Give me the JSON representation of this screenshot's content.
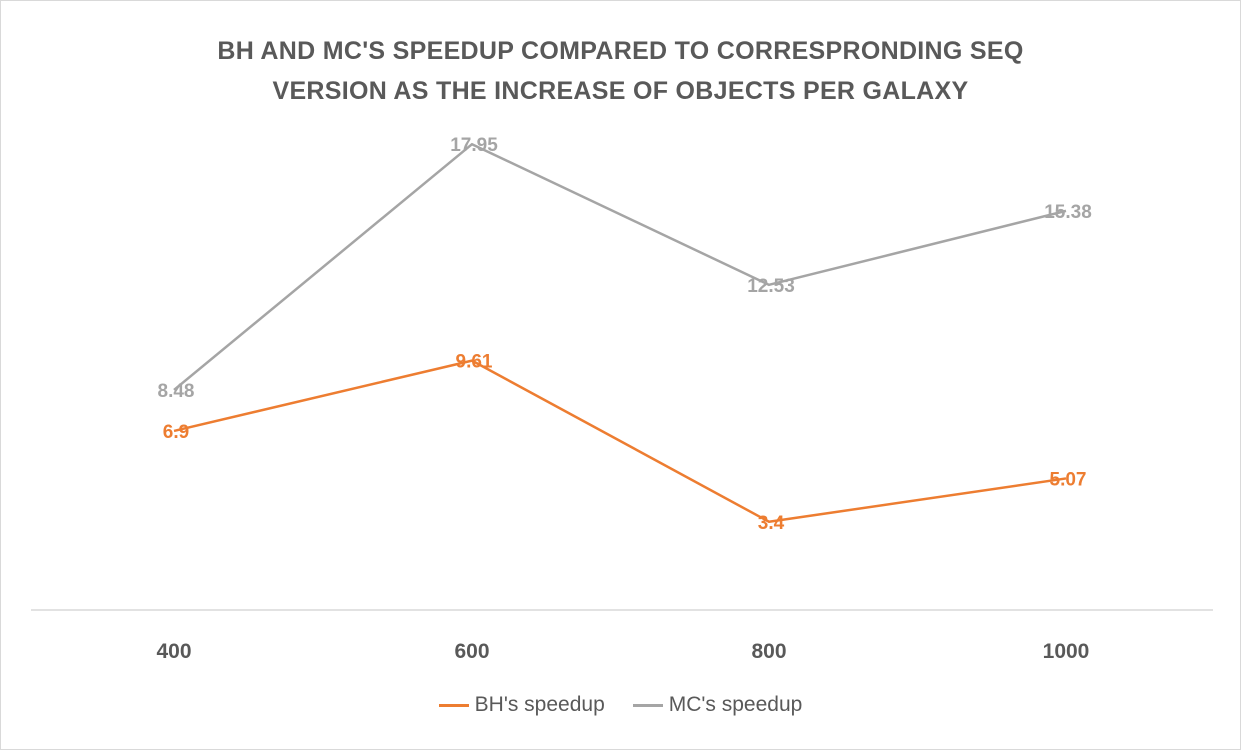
{
  "chart_data": {
    "type": "line",
    "title_lines": [
      "BH AND MC'S SPEEDUP COMPARED TO CORRESPRONDING SEQ",
      "VERSION AS THE INCREASE OF OBJECTS PER GALAXY"
    ],
    "categories": [
      "400",
      "600",
      "800",
      "1000"
    ],
    "series": [
      {
        "name": "BH's speedup",
        "values": [
          6.9,
          9.61,
          3.4,
          5.07
        ],
        "labels": [
          "6.9",
          "9.61",
          "3.4",
          "5.07"
        ],
        "color": "#ed7d31"
      },
      {
        "name": "MC's speedup",
        "values": [
          8.48,
          17.95,
          12.53,
          15.38
        ],
        "labels": [
          "8.48",
          "17.95",
          "12.53",
          "15.38"
        ],
        "color": "#a5a5a5"
      }
    ],
    "ylim": [
      0,
      20
    ],
    "grid": false,
    "legend_position": "bottom"
  }
}
